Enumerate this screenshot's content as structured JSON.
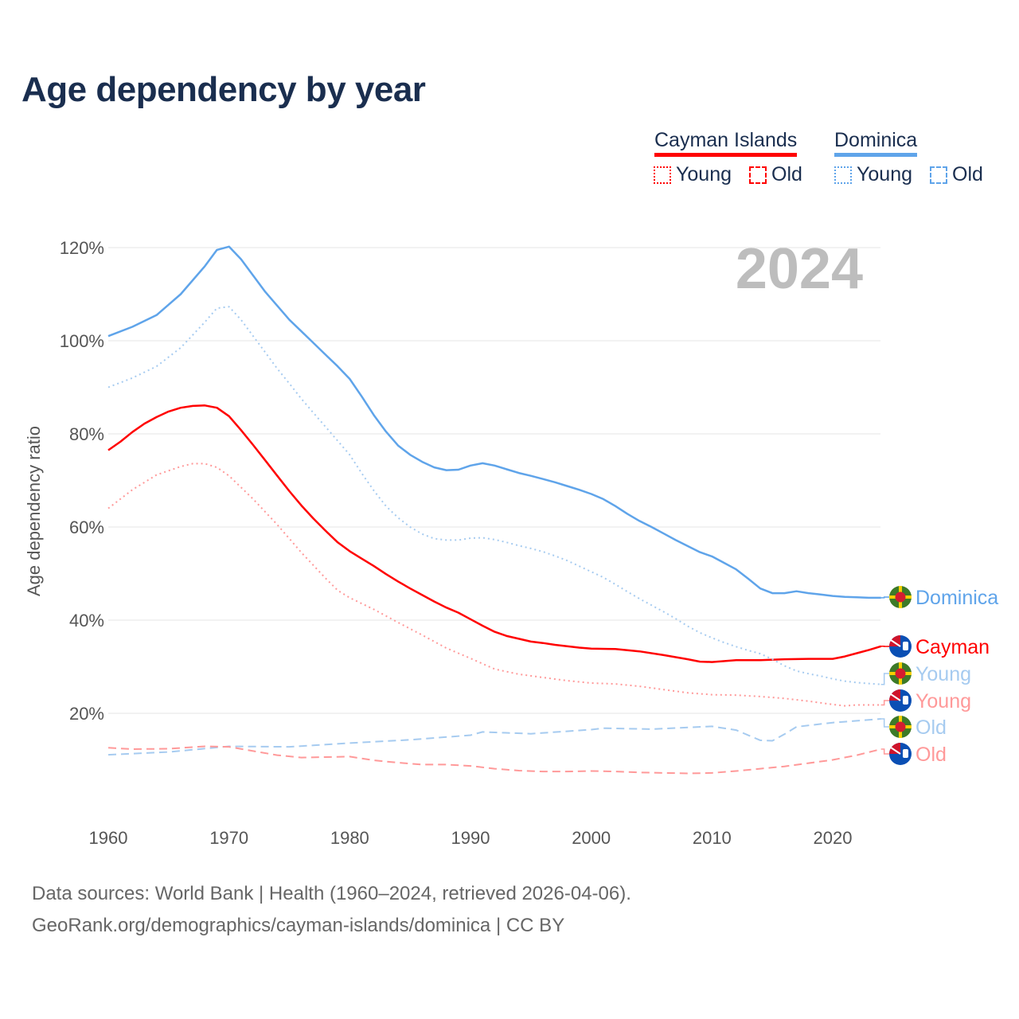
{
  "title": "Age dependency by year",
  "legend": {
    "groups": [
      {
        "name": "Cayman Islands",
        "color": "#ff0000",
        "items": [
          "Young",
          "Old"
        ]
      },
      {
        "name": "Dominica",
        "color": "#5fa4ea",
        "items": [
          "Young",
          "Old"
        ]
      }
    ]
  },
  "footer": {
    "line1": "Data sources: World Bank | Health (1960–2024, retrieved 2026-04-06).",
    "line2": "GeoRank.org/demographics/cayman-islands/dominica | CC BY"
  },
  "chart_data": {
    "type": "line",
    "title": "Age dependency by year",
    "xlabel": "",
    "ylabel": "Age dependency ratio",
    "year_watermark": "2024",
    "xlim": [
      1960,
      2024
    ],
    "ylim": [
      0,
      125
    ],
    "x_ticks": [
      "1960",
      "1970",
      "1980",
      "1990",
      "2000",
      "2010",
      "2020"
    ],
    "y_ticks": [
      "20%",
      "40%",
      "60%",
      "80%",
      "100%",
      "120%"
    ],
    "grid": true,
    "series": [
      {
        "name": "Dominica",
        "end_label": "Dominica",
        "color": "#5fa4ea",
        "style": "solid",
        "x": [
          1960,
          1962,
          1964,
          1966,
          1968,
          1969,
          1970,
          1971,
          1972,
          1973,
          1974,
          1975,
          1976,
          1977,
          1978,
          1979,
          1980,
          1981,
          1982,
          1983,
          1984,
          1985,
          1986,
          1987,
          1988,
          1989,
          1990,
          1991,
          1992,
          1993,
          1994,
          1995,
          1996,
          1997,
          1998,
          1999,
          2000,
          2001,
          2002,
          2003,
          2004,
          2005,
          2006,
          2007,
          2008,
          2009,
          2010,
          2011,
          2012,
          2013,
          2014,
          2015,
          2016,
          2017,
          2018,
          2019,
          2020,
          2021,
          2022,
          2023,
          2024
        ],
        "values": [
          101,
          103,
          105.5,
          110,
          116,
          119.5,
          120.2,
          117.5,
          114,
          110.5,
          107.5,
          104.5,
          102,
          99.5,
          97,
          94.5,
          91.8,
          88,
          84,
          80.5,
          77.5,
          75.5,
          74,
          72.8,
          72.2,
          72.3,
          73.2,
          73.7,
          73.2,
          72.4,
          71.6,
          71,
          70.3,
          69.6,
          68.8,
          68,
          67.1,
          66,
          64.5,
          62.8,
          61.3,
          60,
          58.6,
          57.2,
          55.9,
          54.6,
          53.7,
          52.3,
          50.9,
          48.9,
          46.8,
          45.8,
          45.8,
          46.2,
          45.8,
          45.5,
          45.2,
          45,
          44.9,
          44.8,
          44.8
        ]
      },
      {
        "name": "Cayman Islands",
        "end_label": "Cayman",
        "color": "#ff0000",
        "style": "solid",
        "x": [
          1960,
          1961,
          1962,
          1963,
          1964,
          1965,
          1966,
          1967,
          1968,
          1969,
          1970,
          1971,
          1972,
          1973,
          1974,
          1975,
          1976,
          1977,
          1978,
          1979,
          1980,
          1981,
          1982,
          1983,
          1984,
          1985,
          1986,
          1987,
          1988,
          1989,
          1990,
          1991,
          1992,
          1993,
          1994,
          1995,
          1996,
          1997,
          1998,
          1999,
          2000,
          2002,
          2004,
          2006,
          2008,
          2009,
          2010,
          2012,
          2014,
          2016,
          2018,
          2020,
          2021,
          2022,
          2023,
          2024
        ],
        "values": [
          76.5,
          78.3,
          80.4,
          82.2,
          83.6,
          84.8,
          85.6,
          86,
          86.1,
          85.6,
          83.8,
          80.8,
          77.6,
          74.3,
          71,
          67.7,
          64.6,
          61.8,
          59.2,
          56.7,
          54.8,
          53.2,
          51.6,
          49.9,
          48.3,
          46.8,
          45.4,
          44,
          42.7,
          41.6,
          40.2,
          38.8,
          37.5,
          36.6,
          36,
          35.4,
          35.1,
          34.7,
          34.4,
          34.1,
          33.9,
          33.8,
          33.3,
          32.5,
          31.6,
          31.1,
          31,
          31.4,
          31.4,
          31.6,
          31.7,
          31.7,
          32.2,
          32.9,
          33.6,
          34.4
        ]
      },
      {
        "name": "Dominica Young",
        "end_label": "Young",
        "color": "#a6cbf0",
        "style": "dotted",
        "x": [
          1960,
          1962,
          1964,
          1966,
          1968,
          1969,
          1970,
          1971,
          1972,
          1973,
          1974,
          1975,
          1976,
          1977,
          1978,
          1979,
          1980,
          1981,
          1982,
          1983,
          1984,
          1985,
          1986,
          1987,
          1988,
          1989,
          1990,
          1991,
          1992,
          1993,
          1994,
          1995,
          1996,
          1997,
          1998,
          1999,
          2000,
          2001,
          2002,
          2003,
          2004,
          2005,
          2006,
          2007,
          2008,
          2009,
          2010,
          2011,
          2012,
          2013,
          2014,
          2015,
          2016,
          2017,
          2018,
          2019,
          2020,
          2021,
          2022,
          2023,
          2024
        ],
        "values": [
          90,
          92,
          94.5,
          98.5,
          104,
          107,
          107.3,
          104.5,
          101,
          97.5,
          94,
          90.8,
          87.5,
          84.5,
          81.5,
          78.5,
          75.5,
          71.5,
          67.8,
          64.5,
          62,
          60,
          58.5,
          57.5,
          57.2,
          57.2,
          57.6,
          57.7,
          57.3,
          56.7,
          56,
          55.4,
          54.7,
          53.8,
          52.8,
          51.6,
          50.4,
          49.2,
          47.7,
          46.1,
          44.6,
          43.2,
          41.8,
          40.3,
          38.7,
          37.3,
          36.2,
          35.2,
          34.3,
          33.5,
          32.8,
          31.6,
          30.2,
          29.1,
          28.5,
          28,
          27.4,
          26.9,
          26.6,
          26.4,
          26.2
        ]
      },
      {
        "name": "Cayman Islands Young",
        "end_label": "Young",
        "color": "#ff9999",
        "style": "dotted",
        "x": [
          1960,
          1962,
          1964,
          1966,
          1967,
          1968,
          1969,
          1970,
          1972,
          1974,
          1976,
          1978,
          1979,
          1980,
          1982,
          1984,
          1986,
          1988,
          1990,
          1992,
          1994,
          1996,
          1998,
          2000,
          2002,
          2004,
          2006,
          2008,
          2010,
          2012,
          2014,
          2016,
          2018,
          2020,
          2021,
          2022,
          2024
        ],
        "values": [
          64,
          68,
          71.2,
          73,
          73.6,
          73.6,
          72.8,
          71,
          66,
          60.5,
          54.5,
          49,
          46.4,
          44.8,
          42.3,
          39.5,
          36.8,
          34,
          31.8,
          29.5,
          28.4,
          27.7,
          27,
          26.5,
          26.3,
          25.8,
          25.1,
          24.4,
          24,
          23.9,
          23.6,
          23.2,
          22.6,
          21.9,
          21.6,
          21.8,
          21.8
        ]
      },
      {
        "name": "Dominica Old",
        "end_label": "Old",
        "color": "#a6cbf0",
        "style": "dashed",
        "x": [
          1960,
          1965,
          1970,
          1975,
          1980,
          1985,
          1990,
          1991,
          1995,
          2000,
          2001,
          2005,
          2010,
          2012,
          2014,
          2015,
          2016,
          2017,
          2020,
          2022,
          2024
        ],
        "values": [
          11.1,
          11.7,
          12.9,
          12.8,
          13.6,
          14.3,
          15.3,
          16,
          15.6,
          16.5,
          16.8,
          16.6,
          17.2,
          16.4,
          14.2,
          14.1,
          15.5,
          17.1,
          18,
          18.4,
          18.8
        ]
      },
      {
        "name": "Cayman Islands Old",
        "end_label": "Old",
        "color": "#ff9999",
        "style": "dashed",
        "x": [
          1960,
          1962,
          1965,
          1968,
          1970,
          1972,
          1974,
          1976,
          1978,
          1980,
          1982,
          1984,
          1986,
          1988,
          1990,
          1992,
          1994,
          1996,
          1998,
          2000,
          2002,
          2004,
          2006,
          2008,
          2010,
          2012,
          2014,
          2016,
          2018,
          2020,
          2022,
          2024
        ],
        "values": [
          12.6,
          12.3,
          12.4,
          12.9,
          12.8,
          11.9,
          11,
          10.5,
          10.6,
          10.7,
          9.9,
          9.4,
          9,
          9,
          8.7,
          8.1,
          7.7,
          7.5,
          7.5,
          7.6,
          7.5,
          7.3,
          7.2,
          7.1,
          7.2,
          7.6,
          8.1,
          8.6,
          9.3,
          10,
          11,
          12.3
        ]
      }
    ]
  }
}
